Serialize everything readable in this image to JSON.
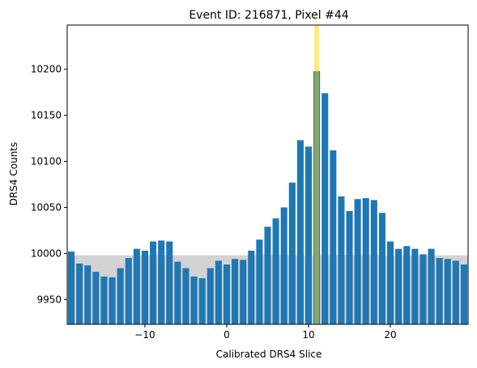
{
  "chart_data": {
    "type": "bar",
    "title": "Event ID: 216871, Pixel #44",
    "xlabel": "Calibrated DRS4 Slice",
    "ylabel": "DRS4 Counts",
    "xlim": [
      -19.5,
      29.5
    ],
    "ylim": [
      9923,
      10248
    ],
    "xticks": [
      -10,
      0,
      10,
      20
    ],
    "yticks": [
      9950,
      10000,
      10050,
      10100,
      10150,
      10200
    ],
    "baseline_band": [
      9923,
      9998
    ],
    "highlight_x": 11,
    "grid": false,
    "colors": {
      "bar": "#1f77b4",
      "band": "#d3d3d3",
      "highlight": "#ffd700"
    },
    "x": [
      -19,
      -18,
      -17,
      -16,
      -15,
      -14,
      -13,
      -12,
      -11,
      -10,
      -9,
      -8,
      -7,
      -6,
      -5,
      -4,
      -3,
      -2,
      -1,
      0,
      1,
      2,
      3,
      4,
      5,
      6,
      7,
      8,
      9,
      10,
      11,
      12,
      13,
      14,
      15,
      16,
      17,
      18,
      19,
      20,
      21,
      22,
      23,
      24,
      25,
      26,
      27,
      28,
      29
    ],
    "values": [
      10002,
      9989,
      9987,
      9980,
      9975,
      9974,
      9984,
      9995,
      10005,
      10003,
      10013,
      10014,
      10013,
      9991,
      9984,
      9975,
      9973,
      9984,
      9992,
      9988,
      9994,
      9993,
      10003,
      10015,
      10029,
      10038,
      10050,
      10077,
      10123,
      10116,
      10198,
      10174,
      10112,
      10062,
      10046,
      10059,
      10060,
      10058,
      10044,
      10013,
      10005,
      10008,
      10005,
      9999,
      10005,
      9995,
      9994,
      9992,
      9988
    ]
  }
}
